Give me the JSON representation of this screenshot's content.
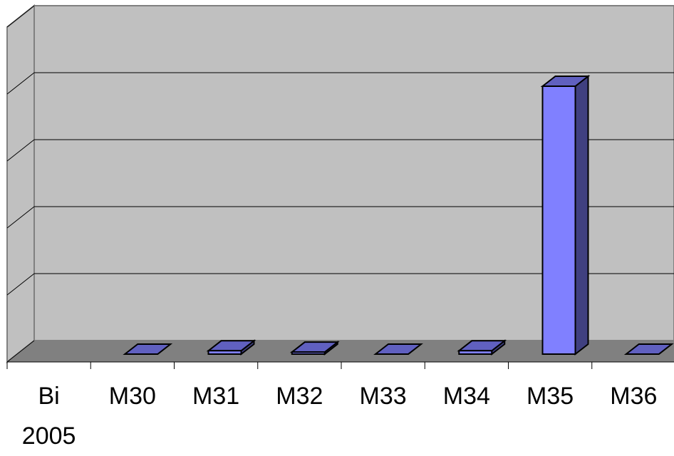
{
  "chart_data": {
    "type": "bar3d",
    "categories": [
      "Bi 2005",
      "M30",
      "M31",
      "M32",
      "M33",
      "M34",
      "M35",
      "M36"
    ],
    "values": [
      null,
      0,
      0.05,
      0.03,
      0,
      0.05,
      4,
      0
    ],
    "color": "#8080ff",
    "ylim": [
      0,
      5
    ],
    "yticks": [
      0,
      1,
      2,
      3,
      4,
      5
    ],
    "grid": true
  }
}
